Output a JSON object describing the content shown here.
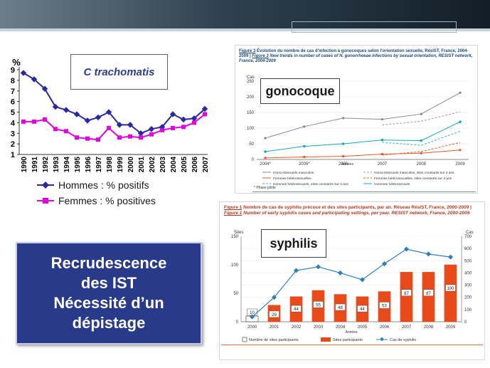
{
  "colors": {
    "band_dark": "#121e27",
    "navy_line": "#2a2aa0",
    "magenta_line": "#e000e0",
    "message_bg": "#2a3a8a",
    "caption_blue": "#1e4a78",
    "syph_red": "#e84a1a",
    "syph_blue": "#2f7fbf",
    "teal": "#1aa6b6"
  },
  "left_chart": {
    "title": "C trachomatis",
    "ylabel": "%",
    "legend": [
      {
        "label": "Hommes :  %  positifs",
        "icon": "diamond-marker"
      },
      {
        "label": "Femmes : %  positives",
        "icon": "square-marker"
      }
    ],
    "chart_data": {
      "type": "line",
      "x": [
        "1990",
        "1991",
        "1992",
        "1993",
        "1994",
        "1995",
        "1996",
        "1997",
        "1998",
        "1999",
        "2000",
        "2001",
        "2002",
        "2003",
        "2004",
        "2005",
        "2006",
        "2007"
      ],
      "series": [
        {
          "name": "Hommes :  %  positifs",
          "values": [
            8.7,
            8.1,
            7.2,
            5.5,
            5.2,
            4.8,
            4.2,
            4.5,
            5.0,
            3.8,
            3.8,
            3.0,
            3.4,
            3.6,
            4.8,
            4.3,
            4.4,
            5.3
          ]
        },
        {
          "name": "Femmes : %  positives",
          "values": [
            4.1,
            4.1,
            4.3,
            3.4,
            3.2,
            2.6,
            2.5,
            2.4,
            3.5,
            2.6,
            2.7,
            2.6,
            2.9,
            3.3,
            3.5,
            3.6,
            4.0,
            4.8
          ]
        }
      ],
      "ylim": [
        1,
        9
      ],
      "yticks": [
        "1",
        "2",
        "3",
        "4",
        "5",
        "6",
        "7",
        "8",
        "9"
      ],
      "grid": false
    }
  },
  "message": {
    "lines": [
      "Recrudescence",
      "des IST",
      "Nécessité d’un",
      "dépistage"
    ]
  },
  "gono": {
    "caption_fig": "Figure 3",
    "caption_fr": "Évolution du nombre de cas d'infection à gonocoques selon l'orientation sexuelle, RésIST, France, 2004-2009",
    "caption_sep": "|",
    "caption_fig2": "Figure 3",
    "caption_en": "New trends in number of cases of N. gonorrhoeae infections by sexual orientation, RESIST network, France, 2004-2009",
    "tag": "gonocoque",
    "ylabel": "Cas",
    "xlabel": "Années",
    "footnote": "* Phase pilote",
    "legend": [
      "Homo-bisexuels masculins",
      "Homo-bisexuels masculins, sites constants sur 3 ans",
      "Femmes hétérosexuelles",
      "Femmes hétérosexuelles, sites constants sur 3 ans",
      "Hommes hétérosexuels, sites constants sur 3 ans",
      "Hommes hétérosexuels"
    ],
    "chart_data": {
      "type": "line",
      "x": [
        "2004*",
        "2005*",
        "2006",
        "2007",
        "2008",
        "2009"
      ],
      "ylim": [
        0,
        250
      ],
      "yticks": [
        "0",
        "50",
        "100",
        "150",
        "200",
        "250"
      ],
      "series": [
        {
          "name": "Homo-bisexuels masculins",
          "values": [
            68,
            105,
            132,
            128,
            145,
            213
          ]
        },
        {
          "name": "Homo-bisexuels masculins, sites constants sur 3 ans",
          "values": [
            null,
            null,
            null,
            110,
            122,
            152
          ]
        },
        {
          "name": "Femmes hétérosexuelles",
          "values": [
            5,
            8,
            10,
            17,
            20,
            30
          ]
        },
        {
          "name": "Femmes hétérosexuelles, sites constants sur 3 ans",
          "values": [
            null,
            null,
            null,
            14,
            25,
            54
          ]
        },
        {
          "name": "Hommes hétérosexuels, sites constants sur 3 ans",
          "values": [
            null,
            null,
            null,
            55,
            45,
            90
          ]
        },
        {
          "name": "Hommes hétérosexuels",
          "values": [
            25,
            42,
            50,
            62,
            60,
            120
          ]
        }
      ]
    }
  },
  "syph": {
    "caption_fig": "Figure 1",
    "caption_fr": "Nombre de cas de syphilis précoce et des sites participants, par an. Réseau RésIST, France, 2000-2009",
    "caption_sep": "|",
    "caption_fig2": "Figure 1",
    "caption_en": "Number of early syphilis cases and participating settings, per year. RESIST network, France, 2000-2009",
    "tag": "syphilis",
    "ylabel_left": "Sites",
    "ylabel_right": "Cas",
    "xlabel": "Années",
    "legend": [
      "Nombre de sites participants",
      "Sites participants",
      "Cas de syphilis"
    ],
    "chart_data": {
      "type": "bar",
      "categories": [
        "2000",
        "2001",
        "2002",
        "2003",
        "2004",
        "2005",
        "2006",
        "2007",
        "2008",
        "2009"
      ],
      "series": [
        {
          "name": "Sites participants",
          "values": [
            10,
            29,
            44,
            55,
            48,
            44,
            53,
            87,
            87,
            100
          ],
          "axis": "left"
        },
        {
          "name": "Cas de syphilis",
          "values": [
            40,
            200,
            420,
            450,
            400,
            345,
            475,
            595,
            555,
            530
          ],
          "axis": "right"
        }
      ],
      "bar_labels": [
        "10",
        "29",
        "44",
        "55",
        "48",
        "44",
        "53",
        "87",
        "87",
        "100"
      ],
      "ylim_left": [
        0,
        150
      ],
      "yticks_left": [
        "0",
        "50",
        "100",
        "150"
      ],
      "ylim_right": [
        0,
        700
      ],
      "yticks_right": [
        "0",
        "100",
        "200",
        "300",
        "400",
        "500",
        "600",
        "700"
      ]
    }
  }
}
